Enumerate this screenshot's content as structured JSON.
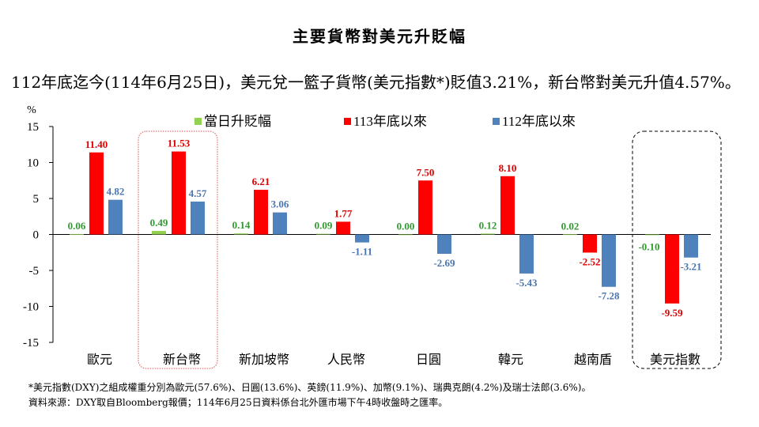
{
  "title": "主要貨幣對美元升貶幅",
  "subtitle": "112年底迄今(114年6月25日)，美元兌一籃子貨幣(美元指數*)貶值3.21%，新台幣對美元升值4.57%。",
  "notes": [
    "*美元指數(DXY)之組成權重分別為歐元(57.6%)、日圓(13.6%)、英鎊(11.9%)、加幣(9.1%)、瑞典克朗(4.2%)及瑞士法郎(3.6%)。",
    "資料來源：DXY取自Bloomberg報價；114年6月25日資料係台北外匯市場下午4時收盤時之匯率。"
  ],
  "chart_data": {
    "type": "bar",
    "ylabel": "%",
    "ylim": [
      -15,
      15
    ],
    "yticks": [
      "15",
      "10",
      "5",
      "0",
      "-5",
      "-10",
      "-15"
    ],
    "grid": false,
    "legend_position": "top",
    "categories": [
      "歐元",
      "新台幣",
      "新加坡幣",
      "人民幣",
      "日圓",
      "韓元",
      "越南盾",
      "美元指數"
    ],
    "highlighted": [
      "新台幣",
      "美元指數"
    ],
    "series": [
      {
        "name": "當日升貶幅",
        "color": "#92d050",
        "label_color": "#339933",
        "values": [
          0.06,
          0.49,
          0.14,
          0.09,
          0.0,
          0.12,
          0.02,
          -0.1
        ],
        "labels": [
          "0.06",
          "0.49",
          "0.14",
          "0.09",
          "0.00",
          "0.12",
          "0.02",
          "-0.10"
        ]
      },
      {
        "name": "113年底以來",
        "color": "#ff0000",
        "label_color": "#e00000",
        "values": [
          11.4,
          11.53,
          6.21,
          1.77,
          7.5,
          8.1,
          -2.52,
          -9.59
        ],
        "labels": [
          "11.40",
          "11.53",
          "6.21",
          "1.77",
          "7.50",
          "8.10",
          "-2.52",
          "-9.59"
        ]
      },
      {
        "name": "112年底以來",
        "color": "#4f81bd",
        "label_color": "#4a76b0",
        "values": [
          4.82,
          4.57,
          3.06,
          -1.11,
          -2.69,
          -5.43,
          -7.28,
          -3.21
        ],
        "labels": [
          "4.82",
          "4.57",
          "3.06",
          "-1.11",
          "-2.69",
          "-5.43",
          "-7.28",
          "-3.21"
        ]
      }
    ]
  }
}
